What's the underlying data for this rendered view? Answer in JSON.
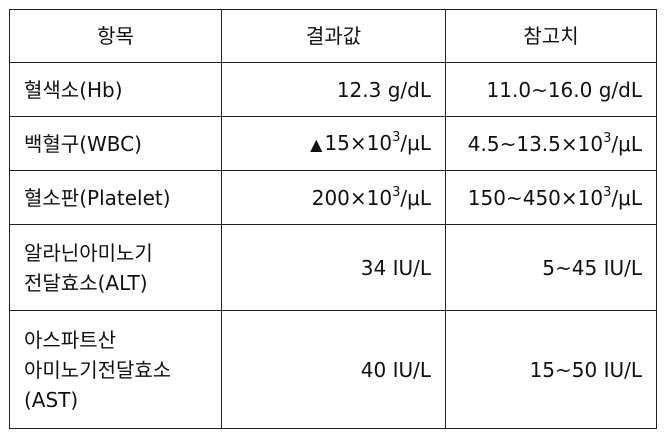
{
  "table": {
    "headers": [
      "항목",
      "결과값",
      "참고치"
    ],
    "rows": [
      {
        "item_lines": [
          "혈색소(Hb)"
        ],
        "result": {
          "prefix": "",
          "value": "12.3 g/dL",
          "exponent": "",
          "unit": ""
        },
        "reference": {
          "value": "11.0~16.0 g/dL",
          "exponent": "",
          "unit": ""
        }
      },
      {
        "item_lines": [
          "백혈구(WBC)"
        ],
        "result": {
          "prefix": "▲",
          "value": "15×10",
          "exponent": "3",
          "unit": "/μL"
        },
        "reference": {
          "value": "4.5~13.5×10",
          "exponent": "3",
          "unit": "/μL"
        }
      },
      {
        "item_lines": [
          "혈소판(Platelet)"
        ],
        "result": {
          "prefix": "",
          "value": "200×10",
          "exponent": "3",
          "unit": "/μL"
        },
        "reference": {
          "value": "150~450×10",
          "exponent": "3",
          "unit": "/μL"
        }
      },
      {
        "item_lines": [
          "알라닌아미노기",
          "전달효소(ALT)"
        ],
        "result": {
          "prefix": "",
          "value": "34 IU/L",
          "exponent": "",
          "unit": ""
        },
        "reference": {
          "value": "5~45 IU/L",
          "exponent": "",
          "unit": ""
        }
      },
      {
        "item_lines": [
          "아스파트산",
          "아미노기전달효소",
          "(AST)"
        ],
        "result": {
          "prefix": "",
          "value": "40 IU/L",
          "exponent": "",
          "unit": ""
        },
        "reference": {
          "value": "15~50 IU/L",
          "exponent": "",
          "unit": ""
        }
      }
    ]
  }
}
